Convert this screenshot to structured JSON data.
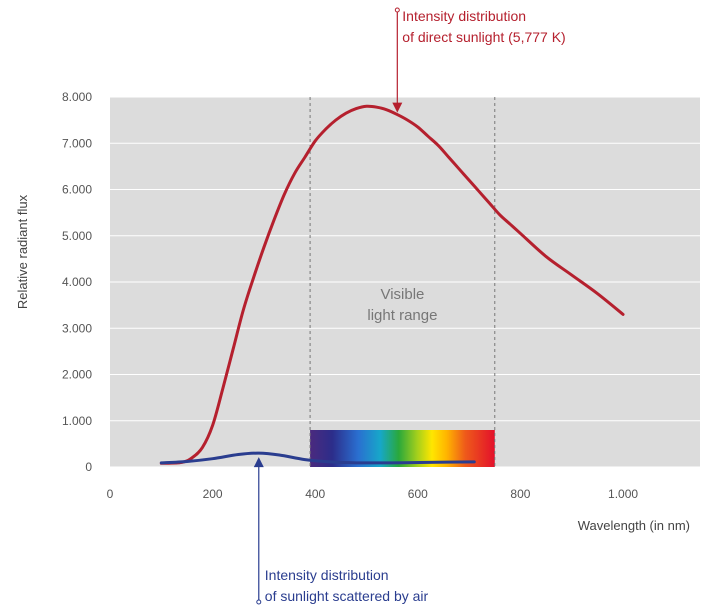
{
  "chart_data": {
    "type": "line",
    "title": "",
    "xlabel": "Wavelength (in nm)",
    "ylabel": "Relative radiant flux",
    "xlim": [
      0,
      1150
    ],
    "ylim": [
      0,
      8000
    ],
    "grid": true,
    "x_ticks": [
      0,
      200,
      400,
      600,
      800,
      1000
    ],
    "x_tick_labels": [
      "0",
      "200",
      "400",
      "600",
      "800",
      "1.000"
    ],
    "y_ticks": [
      0,
      1000,
      2000,
      3000,
      4000,
      5000,
      6000,
      7000,
      8000
    ],
    "y_tick_labels": [
      "0",
      "1.000",
      "2.000",
      "3.000",
      "4.000",
      "5.000",
      "6.000",
      "7.000",
      "8.000"
    ],
    "series": [
      {
        "color": "#b5202e",
        "x": [
          100,
          140,
          160,
          180,
          200,
          220,
          240,
          260,
          280,
          300,
          320,
          340,
          360,
          380,
          400,
          420,
          440,
          460,
          480,
          500,
          520,
          540,
          560,
          580,
          600,
          620,
          640,
          660,
          680,
          700,
          720,
          740,
          760,
          780,
          800,
          850,
          900,
          950,
          1000
        ],
        "y": [
          80,
          100,
          200,
          420,
          900,
          1700,
          2550,
          3400,
          4100,
          4750,
          5350,
          5900,
          6350,
          6700,
          7050,
          7300,
          7500,
          7650,
          7750,
          7800,
          7780,
          7720,
          7620,
          7500,
          7350,
          7150,
          6950,
          6700,
          6450,
          6200,
          5950,
          5700,
          5450,
          5250,
          5050,
          4550,
          4150,
          3750,
          3300
        ]
      },
      {
        "color": "#2a3d8f",
        "x": [
          100,
          150,
          200,
          250,
          290,
          330,
          380,
          430,
          480,
          550,
          620,
          710
        ],
        "y": [
          90,
          120,
          180,
          270,
          300,
          260,
          160,
          110,
          90,
          90,
          100,
          110
        ]
      }
    ],
    "shaded_region": {
      "x_range": [
        390,
        750
      ],
      "label_line1": "Visible",
      "label_line2": "light range",
      "spectrum_bar_y": [
        0,
        800
      ]
    },
    "annotations": [
      {
        "line1": "Intensity distribution",
        "line2": "of direct sunlight (5,777 K)",
        "color": "#b5202e",
        "target_x": 560,
        "target_y": 7620
      },
      {
        "line1": "Intensity distribution",
        "line2": "of sunlight scattered by air",
        "color": "#2a3d8f",
        "target_x": 290,
        "target_y": 300
      }
    ],
    "colors": {
      "plot_background": "#dcdcdc",
      "grid": "#ffffff",
      "region_divider": "#777777",
      "region_label": "#777777"
    }
  }
}
